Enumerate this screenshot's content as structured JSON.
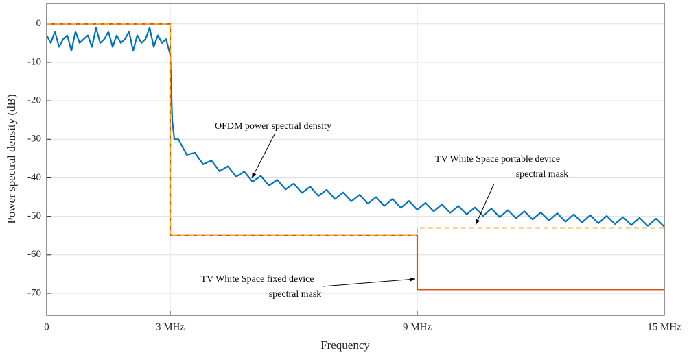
{
  "chart_data": {
    "type": "line",
    "xlabel": "Frequency",
    "ylabel": "Power spectral density (dB)",
    "xlim": [
      0,
      15
    ],
    "xticks": [
      0,
      {
        "value": 3,
        "label": "3 MHz"
      },
      {
        "value": 9,
        "label": "9 MHz"
      },
      {
        "value": 15,
        "label": "15 MHz"
      }
    ],
    "ylim": [
      -75.7,
      5.3
    ],
    "yticks": [
      -70,
      -60,
      -50,
      -40,
      -30,
      -20,
      -10,
      0
    ],
    "grid": true,
    "series": [
      {
        "name": "OFDM power spectral density",
        "color": "#0072bd",
        "style": "solid",
        "x": [
          0,
          0.1,
          0.2,
          0.3,
          0.4,
          0.5,
          0.6,
          0.7,
          0.8,
          0.9,
          1.0,
          1.1,
          1.2,
          1.3,
          1.4,
          1.5,
          1.6,
          1.7,
          1.8,
          1.9,
          2.0,
          2.1,
          2.2,
          2.3,
          2.4,
          2.5,
          2.6,
          2.7,
          2.8,
          2.9,
          3.0,
          3.05,
          3.1,
          3.2,
          3.4,
          3.6,
          3.8,
          4.0,
          4.2,
          4.4,
          4.6,
          4.8,
          5.0,
          5.2,
          5.4,
          5.6,
          5.8,
          6.0,
          6.2,
          6.4,
          6.6,
          6.8,
          7.0,
          7.2,
          7.4,
          7.6,
          7.8,
          8.0,
          8.2,
          8.4,
          8.6,
          8.8,
          9.0,
          9.2,
          9.4,
          9.6,
          9.8,
          10.0,
          10.2,
          10.4,
          10.6,
          10.8,
          11.0,
          11.2,
          11.4,
          11.6,
          11.8,
          12.0,
          12.2,
          12.4,
          12.6,
          12.8,
          13.0,
          13.2,
          13.4,
          13.6,
          13.8,
          14.0,
          14.2,
          14.4,
          14.6,
          14.8,
          15.0
        ],
        "values": [
          -3,
          -5,
          -2,
          -6,
          -4,
          -3,
          -7,
          -2,
          -5,
          -4,
          -3,
          -6,
          -1,
          -5,
          -4,
          -2,
          -6,
          -3,
          -5,
          -4,
          -2,
          -7,
          -3,
          -5,
          -4,
          -1,
          -6,
          -3,
          -5,
          -4,
          -8,
          -25,
          -30,
          -30,
          -34,
          -33.5,
          -36.5,
          -35.5,
          -38.3,
          -37,
          -39.7,
          -38.4,
          -41,
          -39.5,
          -42,
          -40.5,
          -43,
          -41.5,
          -43.9,
          -42.3,
          -44.7,
          -43.1,
          -45.5,
          -43.8,
          -46.1,
          -44.4,
          -46.7,
          -45,
          -47.3,
          -45.5,
          -47.8,
          -46,
          -48.3,
          -46.5,
          -48.7,
          -46.9,
          -49.1,
          -47.3,
          -49.5,
          -47.7,
          -49.9,
          -48,
          -50.2,
          -48.4,
          -50.5,
          -48.7,
          -50.8,
          -49,
          -51.1,
          -49.2,
          -51.4,
          -49.5,
          -51.6,
          -49.7,
          -51.8,
          -49.9,
          -52,
          -50.2,
          -52.3,
          -50.4,
          -52.5,
          -50.6,
          -52.7
        ]
      },
      {
        "name": "TV White Space fixed device spectral mask",
        "color": "#d95319",
        "style": "solid",
        "x": [
          0,
          3,
          3,
          9,
          9,
          15
        ],
        "values": [
          0,
          0,
          -55,
          -55,
          -69,
          -69
        ]
      },
      {
        "name": "TV White Space portable device spectral mask",
        "color": "#edb120",
        "style": "dashed",
        "x": [
          0,
          3,
          3,
          9,
          9,
          15
        ],
        "values": [
          0,
          0,
          -55,
          -55,
          -53,
          -53
        ]
      }
    ],
    "annotations": [
      {
        "lines": [
          "OFDM power spectral density"
        ]
      },
      {
        "lines": [
          "TV White Space portable device",
          "spectral mask"
        ]
      },
      {
        "lines": [
          "TV White Space fixed device",
          "spectral mask"
        ]
      }
    ]
  }
}
